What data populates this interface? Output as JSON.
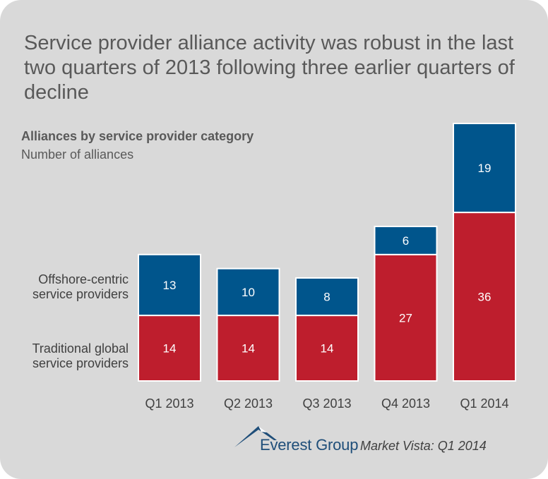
{
  "headline": "Service provider alliance activity was robust in the last two quarters of 2013 following three earlier quarters of decline",
  "legend": {
    "offshore": [
      "Offshore-centric",
      "service providers"
    ],
    "traditional": [
      "Traditional global",
      "service providers"
    ]
  },
  "footer": {
    "brand": "Everest Group",
    "source": "Market Vista: Q1 2014"
  },
  "colors": {
    "traditional": "#be1e2d",
    "offshore": "#00558c",
    "background": "#d9d9d9"
  },
  "chart_data": {
    "type": "bar",
    "stacked": true,
    "title": "Alliances by service provider category",
    "subtitle": "Number of alliances",
    "categories": [
      "Q1 2013",
      "Q2 2013",
      "Q3 2013",
      "Q4 2013",
      "Q1 2014"
    ],
    "series": [
      {
        "name": "Traditional global service providers",
        "values": [
          14,
          14,
          14,
          27,
          36
        ]
      },
      {
        "name": "Offshore-centric service providers",
        "values": [
          13,
          10,
          8,
          6,
          19
        ]
      }
    ],
    "ylim": [
      0,
      55
    ],
    "grid": false,
    "axis_visible": false,
    "data_labels": true
  }
}
